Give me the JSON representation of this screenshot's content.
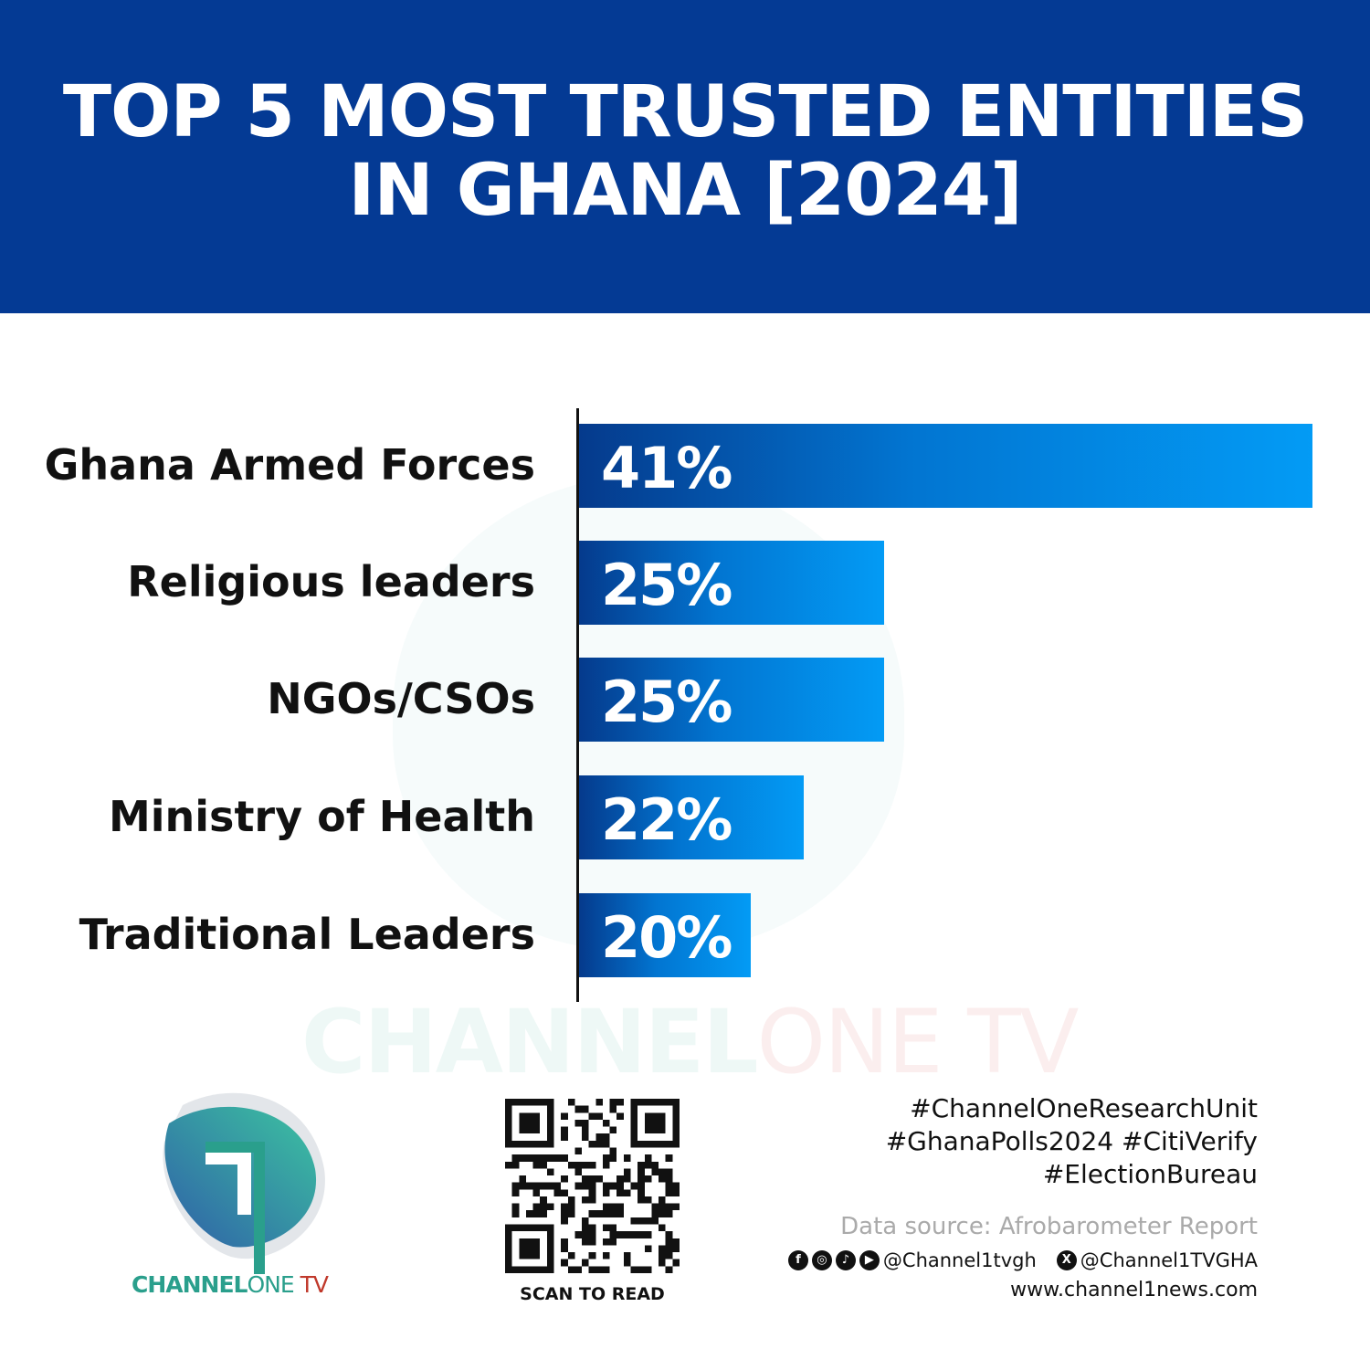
{
  "header": {
    "title_line1": "TOP 5 MOST TRUSTED ENTITIES",
    "title_line2": "IN GHANA [2024]"
  },
  "chart_data": {
    "type": "bar",
    "orientation": "horizontal",
    "title": "TOP 5 MOST TRUSTED ENTITIES IN GHANA [2024]",
    "categories": [
      "Ghana Armed Forces",
      "Religious leaders",
      "NGOs/CSOs",
      "Ministry of Health",
      "Traditional Leaders"
    ],
    "values": [
      41,
      25,
      25,
      22,
      20
    ],
    "value_labels": [
      "41%",
      "25%",
      "25%",
      "22%",
      "20%"
    ],
    "xlim": [
      13.6,
      41
    ],
    "grid": false,
    "bar_colors": [
      "#053a8c",
      "#039bf5"
    ]
  },
  "watermark": {
    "part1": "CHANNEL",
    "part2": "ONE TV"
  },
  "footer": {
    "brand": {
      "part1": "CHANNEL",
      "part2": "ONE",
      "part3": " TV"
    },
    "scan_label": "SCAN TO READ",
    "hashtags": [
      "#ChannelOneResearchUnit",
      "#GhanaPolls2024 #CitiVerify",
      "#ElectionBureau"
    ],
    "source": "Data source: Afrobarometer Report",
    "social_icons": [
      "facebook-icon",
      "instagram-icon",
      "tiktok-icon",
      "youtube-icon",
      "x-icon"
    ],
    "handle_main": "@Channel1tvgh",
    "handle_x": "@Channel1TVGHA",
    "website": "www.channel1news.com"
  },
  "colors": {
    "header": "#043a94",
    "brand_teal": "#2a9f8c",
    "brand_red": "#c0392b"
  }
}
